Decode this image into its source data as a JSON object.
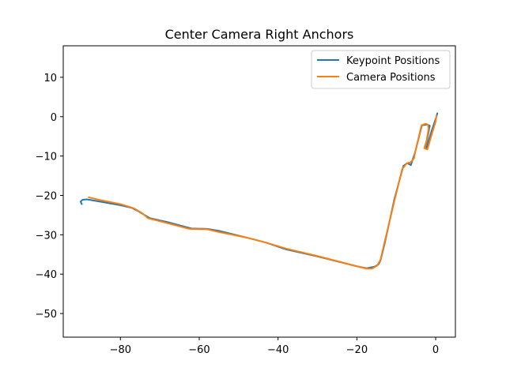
{
  "chart_data": {
    "type": "line",
    "title": "Center Camera Right Anchors",
    "xlabel": "",
    "ylabel": "",
    "xlim": [
      -94.5,
      5
    ],
    "ylim": [
      -56,
      18
    ],
    "xticks": [
      -80,
      -60,
      -40,
      -20,
      0
    ],
    "yticks": [
      10,
      0,
      -10,
      -20,
      -30,
      -40,
      -50
    ],
    "xtick_labels": [
      "−80",
      "−60",
      "−40",
      "−20",
      "0"
    ],
    "ytick_labels": [
      "10",
      "0",
      "−10",
      "−20",
      "−30",
      "−40",
      "−50"
    ],
    "grid": false,
    "legend_position": "top-right",
    "series": [
      {
        "name": "Keypoint Positions",
        "color": "#1f77b4",
        "points": [
          [
            -89.8,
            -22.2
          ],
          [
            -90.1,
            -21.6
          ],
          [
            -89.6,
            -21.1
          ],
          [
            -88.5,
            -21.0
          ],
          [
            -85,
            -21.6
          ],
          [
            -80,
            -22.5
          ],
          [
            -77,
            -23.2
          ],
          [
            -75.5,
            -24.0
          ],
          [
            -72.5,
            -25.8
          ],
          [
            -68,
            -26.8
          ],
          [
            -62,
            -28.4
          ],
          [
            -58,
            -28.5
          ],
          [
            -55,
            -29.0
          ],
          [
            -48,
            -30.7
          ],
          [
            -43,
            -32.0
          ],
          [
            -38,
            -33.7
          ],
          [
            -30,
            -35.5
          ],
          [
            -20,
            -38.0
          ],
          [
            -17.5,
            -38.5
          ],
          [
            -15.5,
            -38.1
          ],
          [
            -14.5,
            -37.5
          ],
          [
            -14,
            -36.5
          ],
          [
            -13,
            -32.5
          ],
          [
            -10.5,
            -21.0
          ],
          [
            -8.2,
            -12.5
          ],
          [
            -7.2,
            -11.8
          ],
          [
            -6.3,
            -12.3
          ],
          [
            -5.2,
            -9.0
          ],
          [
            -3.5,
            -2.2
          ],
          [
            -2.2,
            -2.0
          ],
          [
            -1.5,
            -2.3
          ],
          [
            -2.2,
            -6.0
          ],
          [
            -2.8,
            -8.0
          ],
          [
            -2.4,
            -8.2
          ],
          [
            -1.0,
            -3.5
          ],
          [
            0.2,
            0.0
          ],
          [
            0.4,
            0.8
          ]
        ]
      },
      {
        "name": "Camera Positions",
        "color": "#ff7f0e",
        "points": [
          [
            -88,
            -20.5
          ],
          [
            -85,
            -21.2
          ],
          [
            -80,
            -22.2
          ],
          [
            -76.5,
            -23.3
          ],
          [
            -74.5,
            -24.5
          ],
          [
            -73,
            -25.8
          ],
          [
            -69,
            -26.8
          ],
          [
            -62.5,
            -28.5
          ],
          [
            -58,
            -28.6
          ],
          [
            -55,
            -29.3
          ],
          [
            -48,
            -30.7
          ],
          [
            -43,
            -32.0
          ],
          [
            -38,
            -33.5
          ],
          [
            -30,
            -35.4
          ],
          [
            -20,
            -38.0
          ],
          [
            -17.5,
            -38.6
          ],
          [
            -16.2,
            -38.6
          ],
          [
            -14.8,
            -37.8
          ],
          [
            -14,
            -36.3
          ],
          [
            -13,
            -32.0
          ],
          [
            -10.5,
            -21.5
          ],
          [
            -8.5,
            -13.3
          ],
          [
            -7.3,
            -11.8
          ],
          [
            -6.4,
            -11.6
          ],
          [
            -5.5,
            -10.6
          ],
          [
            -5.2,
            -9.0
          ],
          [
            -3.6,
            -2.2
          ],
          [
            -2.6,
            -1.8
          ],
          [
            -2.0,
            -2.0
          ],
          [
            -1.8,
            -3.0
          ],
          [
            -2.3,
            -6.0
          ],
          [
            -2.9,
            -8.0
          ],
          [
            -2.1,
            -8.3
          ],
          [
            -1.0,
            -4.5
          ],
          [
            0.0,
            -1.2
          ],
          [
            0.2,
            0.2
          ]
        ]
      }
    ]
  }
}
